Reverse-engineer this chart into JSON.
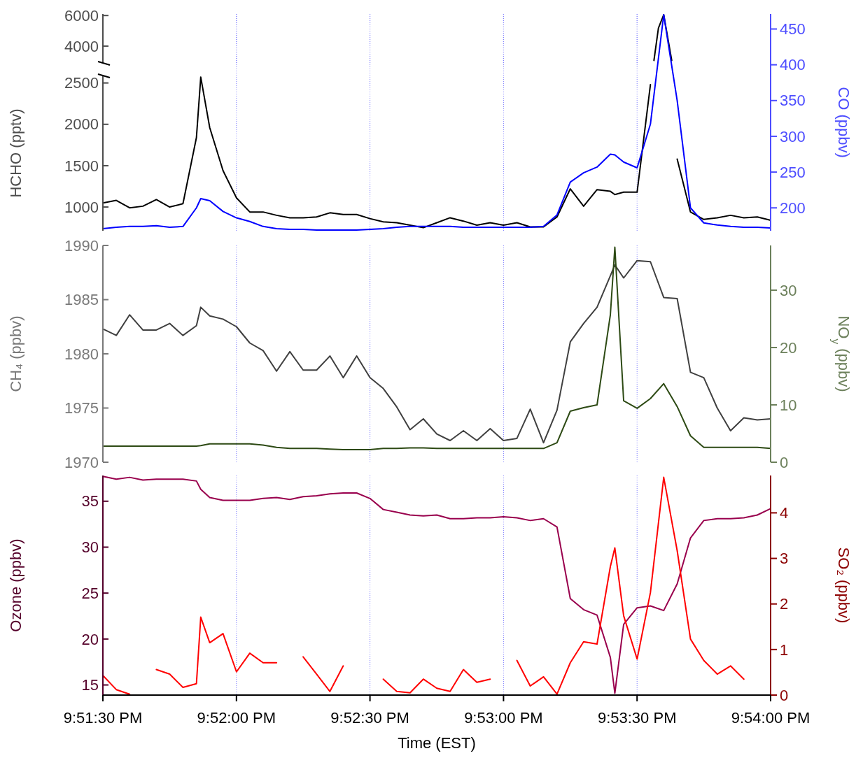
{
  "chart_data": [
    {
      "type": "line",
      "tick_labels": "y",
      "grid": "x",
      "xlim": [
        21.858333,
        21.9
      ],
      "xticks": [
        {
          "value": 21.866667,
          "label": null
        },
        {
          "value": 21.875,
          "label": null
        },
        {
          "value": 21.883333,
          "label": null
        },
        {
          "value": 21.891667,
          "label": null
        }
      ],
      "ylim": [
        2900,
        6100
      ],
      "yticks": [
        4000,
        6000
      ],
      "series": [
        {
          "color": "#000000",
          "x": [
            21.89272,
            21.893,
            21.89333,
            21.89383
          ],
          "values": [
            3060,
            5180,
            6050,
            3060
          ]
        }
      ]
    },
    {
      "type": "line",
      "tick_labels": "y",
      "grid": "x",
      "ylabel": "HCHO (pptv)",
      "y2label": "CO (ppbv)",
      "xlim": [
        21.858333,
        21.9
      ],
      "xticks": [
        {
          "value": 21.866667,
          "label": null
        },
        {
          "value": 21.875,
          "label": null
        },
        {
          "value": 21.883333,
          "label": null
        },
        {
          "value": 21.891667,
          "label": null
        }
      ],
      "ylim": [
        713,
        2590
      ],
      "yticks": [
        1000,
        1500,
        2000,
        2500
      ],
      "y2lim": [
        168,
        471
      ],
      "y2ticks": [
        200,
        250,
        300,
        350,
        400,
        450
      ],
      "x": [
        21.858333,
        21.85917,
        21.86,
        21.86083,
        21.86167,
        21.8625,
        21.86333,
        21.86417,
        21.86444,
        21.865,
        21.86583,
        21.86667,
        21.8675,
        21.86833,
        21.86917,
        21.87,
        21.87083,
        21.87167,
        21.8725,
        21.87333,
        21.87417,
        21.875,
        21.87583,
        21.87667,
        21.8775,
        21.87833,
        21.87917,
        21.88,
        21.88083,
        21.88167,
        21.8825,
        21.88333,
        21.88417,
        21.885,
        21.88583,
        21.88667,
        21.8875,
        21.88833,
        21.88917,
        21.89,
        21.89028,
        21.89083,
        21.89167,
        21.8925,
        21.89333,
        21.89417,
        21.895,
        21.89583,
        21.89667,
        21.8975,
        21.89833,
        21.89917,
        21.9
      ],
      "series": [
        {
          "color": "#000000",
          "values": [
            1050,
            1080,
            990,
            1010,
            1090,
            1000,
            1040,
            1840,
            2570,
            1960,
            1440,
            1110,
            940,
            940,
            900,
            870,
            870,
            880,
            930,
            910,
            910,
            860,
            820,
            810,
            780,
            750,
            810,
            870,
            830,
            780,
            810,
            780,
            810,
            760,
            760,
            880,
            1220,
            1010,
            1210,
            1190,
            1150,
            1180,
            1180,
            2480,
            null,
            1580,
            940,
            850,
            870,
            900,
            870,
            880,
            840
          ]
        },
        {
          "color": "#0000ff",
          "axis": "y2",
          "values": [
            171,
            173,
            174,
            174,
            175,
            173,
            174,
            200,
            213,
            210,
            195,
            186,
            181,
            174,
            171,
            170,
            170,
            169,
            169,
            169,
            169,
            170,
            171,
            173,
            174,
            174,
            174,
            174,
            173,
            173,
            173,
            173,
            173,
            173,
            174,
            190,
            236,
            249,
            257,
            275,
            274,
            264,
            256,
            317,
            470,
            350,
            200,
            179,
            176,
            174,
            173,
            173,
            172
          ]
        }
      ]
    },
    {
      "type": "line",
      "tick_labels": "y",
      "grid": "x",
      "ylabel": "CH₄ (ppbv)",
      "y2label": "NO$_{y}$ (ppbv)",
      "xlim": [
        21.858333,
        21.9
      ],
      "xticks": [
        {
          "value": 21.866667,
          "label": null
        },
        {
          "value": 21.875,
          "label": null
        },
        {
          "value": 21.883333,
          "label": null
        },
        {
          "value": 21.891667,
          "label": null
        }
      ],
      "ylim": [
        1970,
        1990
      ],
      "yticks": [
        1970,
        1975,
        1980,
        1985,
        1990
      ],
      "y2lim": [
        0,
        37.8
      ],
      "y2ticks": [
        0,
        10,
        20,
        30
      ],
      "x": [
        21.858333,
        21.85917,
        21.86,
        21.86083,
        21.86167,
        21.8625,
        21.86333,
        21.86417,
        21.86444,
        21.865,
        21.86583,
        21.86667,
        21.8675,
        21.86833,
        21.86917,
        21.87,
        21.87083,
        21.87167,
        21.8725,
        21.87333,
        21.87417,
        21.875,
        21.87583,
        21.87667,
        21.8775,
        21.87833,
        21.87917,
        21.88,
        21.88083,
        21.88167,
        21.8825,
        21.88333,
        21.88417,
        21.885,
        21.88583,
        21.88667,
        21.8875,
        21.88833,
        21.88917,
        21.89,
        21.89028,
        21.89083,
        21.89167,
        21.8925,
        21.89333,
        21.89417,
        21.895,
        21.89583,
        21.89667,
        21.8975,
        21.89833,
        21.89917,
        21.9
      ],
      "series": [
        {
          "color": "#404040",
          "values": [
            1982.3,
            1981.7,
            1983.6,
            1982.2,
            1982.2,
            1982.8,
            1981.7,
            1982.6,
            1984.3,
            1983.5,
            1983.2,
            1982.5,
            1981.0,
            1980.3,
            1978.4,
            1980.2,
            1978.5,
            1978.5,
            1979.8,
            1977.8,
            1979.8,
            1977.8,
            1976.8,
            1975.1,
            1973.0,
            1974.0,
            1972.6,
            1972.0,
            1972.9,
            1972.0,
            1973.1,
            1972.0,
            1972.2,
            1974.9,
            1971.8,
            1974.8,
            1981.1,
            1982.8,
            1984.3,
            1987.2,
            1988.2,
            1987.0,
            1988.6,
            1988.5,
            1985.2,
            1985.1,
            1978.3,
            1977.8,
            1975.0,
            1972.9,
            1974.1,
            1973.9,
            1974.0
          ]
        },
        {
          "color": "#2d4a14",
          "axis": "y2",
          "values": [
            2.8,
            2.8,
            2.8,
            2.8,
            2.8,
            2.8,
            2.8,
            2.8,
            2.9,
            3.2,
            3.2,
            3.2,
            3.2,
            3.0,
            2.6,
            2.4,
            2.4,
            2.4,
            2.3,
            2.2,
            2.2,
            2.2,
            2.4,
            2.4,
            2.5,
            2.5,
            2.4,
            2.4,
            2.4,
            2.4,
            2.4,
            2.4,
            2.4,
            2.4,
            2.4,
            3.4,
            8.9,
            9.5,
            10.0,
            25.7,
            37.5,
            10.7,
            9.4,
            11.1,
            13.7,
            9.7,
            4.6,
            2.6,
            2.6,
            2.6,
            2.6,
            2.6,
            2.4
          ]
        }
      ]
    },
    {
      "type": "line",
      "grid": "x",
      "xlabel": "Time (EST)",
      "ylabel": "Ozone (ppbv)",
      "y2label": "SO₂ (ppbv)",
      "xlim": [
        21.858333,
        21.9
      ],
      "xticks": [
        {
          "value": 21.858333,
          "label": "9:51:30 PM"
        },
        {
          "value": 21.866667,
          "label": "9:52:00 PM"
        },
        {
          "value": 21.875,
          "label": "9:52:30 PM"
        },
        {
          "value": 21.883333,
          "label": "9:53:00 PM"
        },
        {
          "value": 21.891667,
          "label": "9:53:30 PM"
        },
        {
          "value": 21.9,
          "label": "9:54:00 PM"
        }
      ],
      "ylim": [
        13.9,
        37.8
      ],
      "yticks": [
        15,
        20,
        25,
        30,
        35
      ],
      "y2lim": [
        0,
        4.82
      ],
      "y2ticks": [
        0,
        1,
        2,
        3,
        4
      ],
      "x": [
        21.858333,
        21.85917,
        21.86,
        21.86083,
        21.86167,
        21.8625,
        21.86333,
        21.86417,
        21.86444,
        21.865,
        21.86583,
        21.86667,
        21.8675,
        21.86833,
        21.86917,
        21.87,
        21.87083,
        21.87167,
        21.8725,
        21.87333,
        21.87417,
        21.875,
        21.87583,
        21.87667,
        21.8775,
        21.87833,
        21.87917,
        21.88,
        21.88083,
        21.88167,
        21.8825,
        21.88333,
        21.88417,
        21.885,
        21.88583,
        21.88667,
        21.8875,
        21.88833,
        21.88917,
        21.89,
        21.89028,
        21.89083,
        21.89167,
        21.8925,
        21.89333,
        21.89417,
        21.895,
        21.89583,
        21.89667,
        21.8975,
        21.89833,
        21.89917,
        21.9
      ],
      "series": [
        {
          "color": "#99004d",
          "values": [
            37.7,
            37.4,
            37.6,
            37.3,
            37.4,
            37.4,
            37.4,
            37.2,
            36.3,
            35.4,
            35.1,
            35.1,
            35.1,
            35.3,
            35.4,
            35.2,
            35.5,
            35.6,
            35.8,
            35.9,
            35.9,
            35.3,
            34.1,
            33.8,
            33.5,
            33.4,
            33.5,
            33.1,
            33.1,
            33.2,
            33.2,
            33.3,
            33.2,
            32.9,
            33.1,
            32.2,
            24.4,
            23.2,
            22.6,
            18.0,
            14.1,
            21.6,
            23.4,
            23.6,
            23.1,
            26.0,
            31.0,
            32.9,
            33.1,
            33.1,
            33.2,
            33.5,
            34.2
          ]
        },
        {
          "color": "#ff0000",
          "axis": "y2",
          "values": [
            0.43,
            0.12,
            0.02,
            null,
            0.56,
            0.46,
            0.17,
            0.25,
            1.71,
            1.15,
            1.35,
            0.51,
            0.92,
            0.71,
            0.71,
            null,
            0.84,
            0.46,
            0.08,
            0.64,
            null,
            null,
            0.35,
            0.08,
            0.05,
            0.35,
            0.15,
            0.08,
            0.56,
            0.28,
            0.35,
            null,
            0.76,
            0.2,
            0.4,
            0.02,
            0.71,
            1.17,
            1.12,
            2.82,
            3.23,
            1.74,
            0.79,
            2.25,
            4.78,
            3.17,
            1.23,
            0.76,
            0.46,
            0.64,
            0.35,
            null,
            null
          ]
        }
      ]
    }
  ]
}
